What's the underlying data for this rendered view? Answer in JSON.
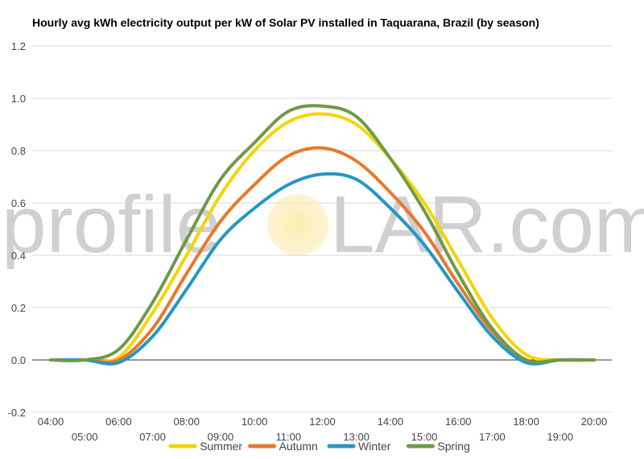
{
  "chart_data": {
    "type": "line",
    "title": "Hourly avg kWh electricity output per kW of Solar PV installed in Taquarana, Brazil (by season)",
    "xlabel": "",
    "ylabel": "",
    "ylim": [
      -0.2,
      1.2
    ],
    "yticks": [
      "-0.2",
      "0.0",
      "0.2",
      "0.4",
      "0.6",
      "0.8",
      "1.0",
      "1.2"
    ],
    "categories": [
      "04:00",
      "05:00",
      "06:00",
      "07:00",
      "08:00",
      "09:00",
      "10:00",
      "11:00",
      "12:00",
      "13:00",
      "14:00",
      "15:00",
      "16:00",
      "17:00",
      "18:00",
      "19:00",
      "20:00"
    ],
    "grid": true,
    "legend": "bottom",
    "series": [
      {
        "name": "Summer",
        "color": "#f4d40a",
        "values": [
          0.0,
          0.0,
          0.01,
          0.18,
          0.4,
          0.63,
          0.8,
          0.91,
          0.94,
          0.9,
          0.77,
          0.6,
          0.38,
          0.16,
          0.02,
          0.0,
          0.0
        ]
      },
      {
        "name": "Autumn",
        "color": "#e6792b",
        "values": [
          0.0,
          0.0,
          0.0,
          0.12,
          0.33,
          0.53,
          0.67,
          0.78,
          0.81,
          0.76,
          0.64,
          0.49,
          0.29,
          0.11,
          0.0,
          0.0,
          0.0
        ]
      },
      {
        "name": "Winter",
        "color": "#2596c4",
        "values": [
          0.0,
          0.0,
          -0.01,
          0.09,
          0.27,
          0.46,
          0.58,
          0.67,
          0.71,
          0.69,
          0.58,
          0.44,
          0.26,
          0.09,
          -0.01,
          0.0,
          0.0
        ]
      },
      {
        "name": "Spring",
        "color": "#6e9a47",
        "values": [
          0.0,
          0.0,
          0.04,
          0.22,
          0.46,
          0.69,
          0.83,
          0.95,
          0.97,
          0.93,
          0.77,
          0.57,
          0.33,
          0.12,
          0.0,
          0.0,
          0.0
        ]
      }
    ]
  },
  "watermark": {
    "left": "profile",
    "right": "LAR.com"
  }
}
